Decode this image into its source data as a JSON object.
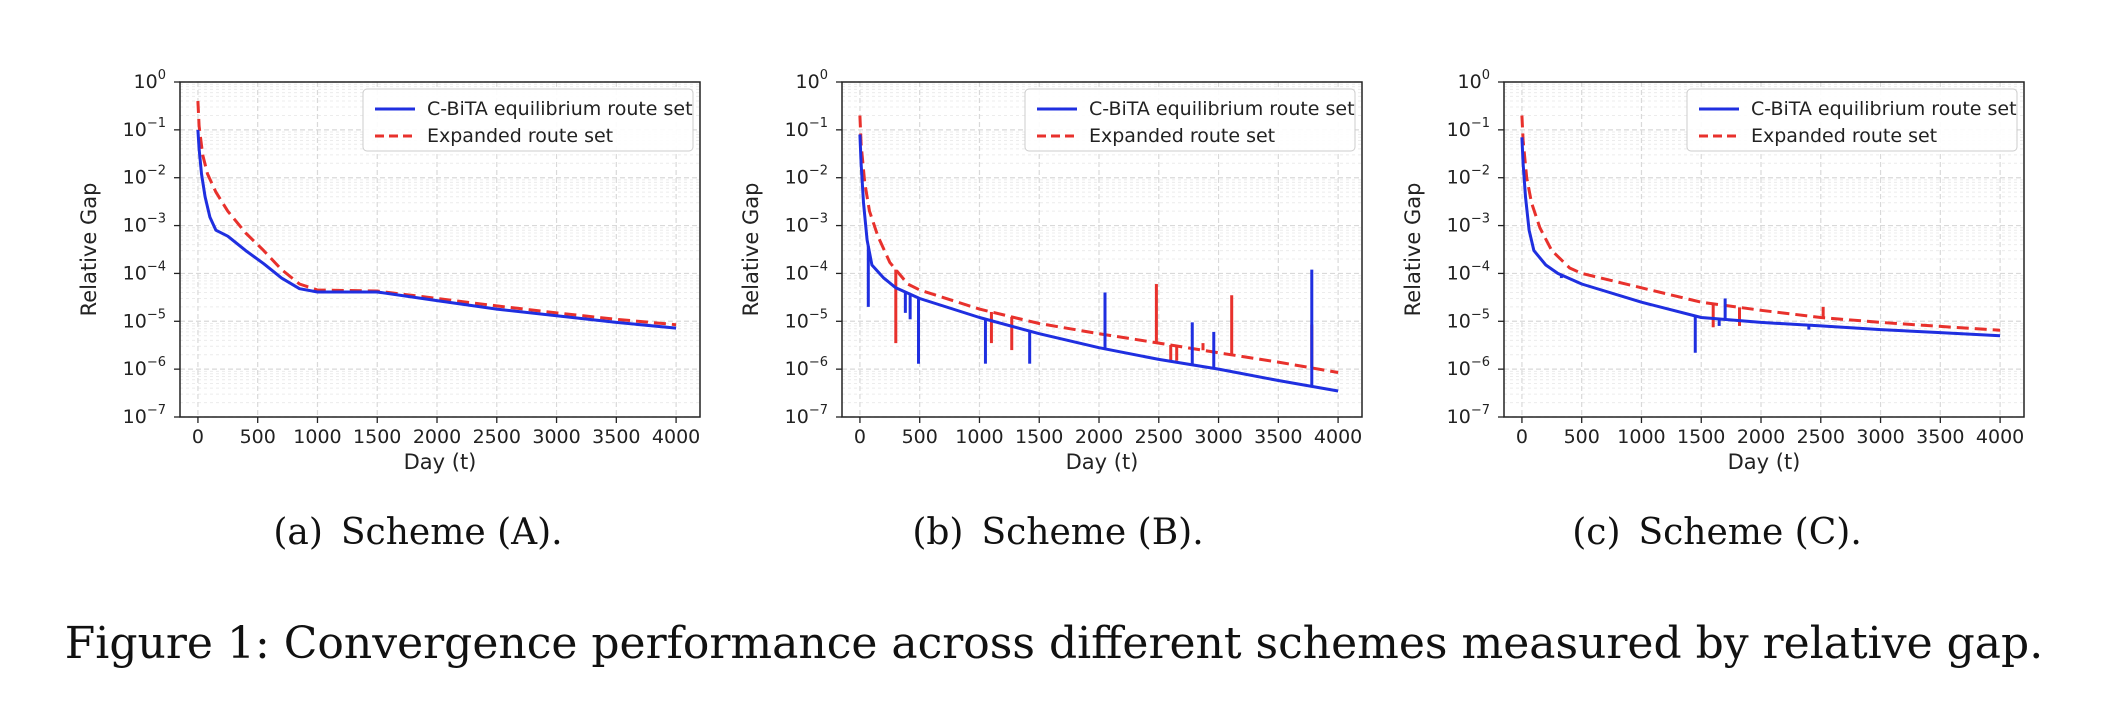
{
  "figure_caption": "Figure 1: Convergence performance across different schemes measured by relative gap.",
  "colors": {
    "series_a": "#1f2fe0",
    "series_b": "#e8312c",
    "grid": "#d9d9d9"
  },
  "chart_data": [
    {
      "type": "line",
      "caption": "(a) Scheme (A).",
      "xlabel": "Day (t)",
      "ylabel": "Relative Gap",
      "xlim": [
        -150,
        4200
      ],
      "ylim_log10": [
        -7,
        0
      ],
      "y_scale": "log",
      "x_ticks": [
        "0",
        "500",
        "1000",
        "1500",
        "2000",
        "2500",
        "3000",
        "3500",
        "4000"
      ],
      "x_tick_values": [
        0,
        500,
        1000,
        1500,
        2000,
        2500,
        3000,
        3500,
        4000
      ],
      "y_tick_exponents": [
        0,
        -1,
        -2,
        -3,
        -4,
        -5,
        -6,
        -7
      ],
      "grid": true,
      "legend_position": "top-right",
      "series": [
        {
          "name": "C-BiTA equilibrium route set",
          "style": "solid",
          "points": [
            [
              0,
              0.1
            ],
            [
              10,
              0.04
            ],
            [
              30,
              0.012
            ],
            [
              60,
              0.004
            ],
            [
              100,
              0.0015
            ],
            [
              150,
              0.0008
            ],
            [
              250,
              0.0006
            ],
            [
              400,
              0.0003
            ],
            [
              550,
              0.00016
            ],
            [
              700,
              8e-05
            ],
            [
              850,
              4.8e-05
            ],
            [
              1000,
              4.1e-05
            ],
            [
              1500,
              4.1e-05
            ],
            [
              2000,
              2.7e-05
            ],
            [
              2500,
              1.8e-05
            ],
            [
              3000,
              1.3e-05
            ],
            [
              3500,
              9.5e-06
            ],
            [
              4000,
              7.2e-06
            ]
          ]
        },
        {
          "name": "Expanded route set",
          "style": "dashed",
          "points": [
            [
              0,
              0.4
            ],
            [
              10,
              0.12
            ],
            [
              40,
              0.03
            ],
            [
              80,
              0.012
            ],
            [
              150,
              0.005
            ],
            [
              250,
              0.002
            ],
            [
              400,
              0.0007
            ],
            [
              550,
              0.0003
            ],
            [
              700,
              0.00012
            ],
            [
              850,
              6e-05
            ],
            [
              1000,
              4.5e-05
            ],
            [
              1500,
              4.3e-05
            ],
            [
              2000,
              3e-05
            ],
            [
              2500,
              2.1e-05
            ],
            [
              3000,
              1.5e-05
            ],
            [
              3500,
              1.1e-05
            ],
            [
              4000,
              8.5e-06
            ]
          ]
        }
      ]
    },
    {
      "type": "line",
      "caption": "(b) Scheme (B).",
      "xlabel": "Day (t)",
      "ylabel": "Relative Gap",
      "xlim": [
        -150,
        4200
      ],
      "ylim_log10": [
        -7,
        0
      ],
      "y_scale": "log",
      "x_ticks": [
        "0",
        "500",
        "1000",
        "1500",
        "2000",
        "2500",
        "3000",
        "3500",
        "4000"
      ],
      "x_tick_values": [
        0,
        500,
        1000,
        1500,
        2000,
        2500,
        3000,
        3500,
        4000
      ],
      "y_tick_exponents": [
        0,
        -1,
        -2,
        -3,
        -4,
        -5,
        -6,
        -7
      ],
      "grid": true,
      "legend_position": "top-right",
      "series": [
        {
          "name": "C-BiTA equilibrium route set",
          "style": "solid",
          "points": [
            [
              0,
              0.08
            ],
            [
              10,
              0.02
            ],
            [
              30,
              0.003
            ],
            [
              60,
              0.0005
            ],
            [
              100,
              0.00015
            ],
            [
              200,
              8e-05
            ],
            [
              300,
              5e-05
            ],
            [
              500,
              3e-05
            ],
            [
              1000,
              1.2e-05
            ],
            [
              1500,
              5.5e-06
            ],
            [
              2000,
              2.8e-06
            ],
            [
              2500,
              1.6e-06
            ],
            [
              3000,
              1e-06
            ],
            [
              3500,
              5.8e-07
            ],
            [
              4000,
              3.5e-07
            ]
          ],
          "spikes": [
            [
              70,
              2e-05
            ],
            [
              380,
              1.5e-05
            ],
            [
              420,
              1.1e-05
            ],
            [
              490,
              1.3e-06
            ],
            [
              1050,
              1.3e-06
            ],
            [
              1420,
              1.3e-06
            ],
            [
              2050,
              4e-05
            ],
            [
              2780,
              9.5e-06
            ],
            [
              2960,
              6e-06
            ],
            [
              3780,
              0.00012
            ]
          ]
        },
        {
          "name": "Expanded route set",
          "style": "dashed",
          "points": [
            [
              0,
              0.2
            ],
            [
              10,
              0.05
            ],
            [
              40,
              0.008
            ],
            [
              80,
              0.002
            ],
            [
              150,
              0.0006
            ],
            [
              250,
              0.00017
            ],
            [
              400,
              6e-05
            ],
            [
              500,
              4.5e-05
            ],
            [
              1000,
              1.8e-05
            ],
            [
              1500,
              9e-06
            ],
            [
              2000,
              5.5e-06
            ],
            [
              2500,
              3.5e-06
            ],
            [
              3000,
              2.2e-06
            ],
            [
              3500,
              1.4e-06
            ],
            [
              4000,
              8.5e-07
            ]
          ],
          "spikes": [
            [
              300,
              3.5e-06
            ],
            [
              1100,
              3.5e-06
            ],
            [
              1270,
              2.5e-06
            ],
            [
              2480,
              6e-05
            ],
            [
              2600,
              1.5e-06
            ],
            [
              2650,
              1.5e-06
            ],
            [
              2870,
              3.5e-06
            ],
            [
              3110,
              3.5e-05
            ],
            [
              3780,
              8.5e-06
            ]
          ]
        }
      ]
    },
    {
      "type": "line",
      "caption": "(c) Scheme (C).",
      "xlabel": "Day (t)",
      "ylabel": "Relative Gap",
      "xlim": [
        -150,
        4200
      ],
      "ylim_log10": [
        -7,
        0
      ],
      "y_scale": "log",
      "x_ticks": [
        "0",
        "500",
        "1000",
        "1500",
        "2000",
        "2500",
        "3000",
        "3500",
        "4000"
      ],
      "x_tick_values": [
        0,
        500,
        1000,
        1500,
        2000,
        2500,
        3000,
        3500,
        4000
      ],
      "y_tick_exponents": [
        0,
        -1,
        -2,
        -3,
        -4,
        -5,
        -6,
        -7
      ],
      "grid": true,
      "legend_position": "top-right",
      "series": [
        {
          "name": "C-BiTA equilibrium route set",
          "style": "solid",
          "points": [
            [
              0,
              0.07
            ],
            [
              10,
              0.02
            ],
            [
              30,
              0.004
            ],
            [
              60,
              0.0008
            ],
            [
              100,
              0.0003
            ],
            [
              200,
              0.00015
            ],
            [
              300,
              0.0001
            ],
            [
              500,
              6e-05
            ],
            [
              1000,
              2.5e-05
            ],
            [
              1500,
              1.2e-05
            ],
            [
              2000,
              9.5e-06
            ],
            [
              2500,
              8e-06
            ],
            [
              3000,
              6.7e-06
            ],
            [
              3500,
              5.8e-06
            ],
            [
              4000,
              5e-06
            ]
          ],
          "spikes": [
            [
              330,
              8e-05
            ],
            [
              1450,
              2.2e-06
            ],
            [
              1650,
              8e-06
            ],
            [
              1700,
              3e-05
            ],
            [
              2400,
              6.7e-06
            ]
          ]
        },
        {
          "name": "Expanded route set",
          "style": "dashed",
          "points": [
            [
              0,
              0.2
            ],
            [
              10,
              0.06
            ],
            [
              40,
              0.01
            ],
            [
              80,
              0.003
            ],
            [
              150,
              0.0009
            ],
            [
              250,
              0.0003
            ],
            [
              400,
              0.00013
            ],
            [
              500,
              0.0001
            ],
            [
              1000,
              5e-05
            ],
            [
              1500,
              2.5e-05
            ],
            [
              2000,
              1.7e-05
            ],
            [
              2500,
              1.2e-05
            ],
            [
              3000,
              9.5e-06
            ],
            [
              3500,
              7.8e-06
            ],
            [
              4000,
              6.5e-06
            ]
          ],
          "spikes": [
            [
              1600,
              7.5e-06
            ],
            [
              1820,
              8e-06
            ],
            [
              2520,
              2e-05
            ]
          ]
        }
      ]
    }
  ]
}
